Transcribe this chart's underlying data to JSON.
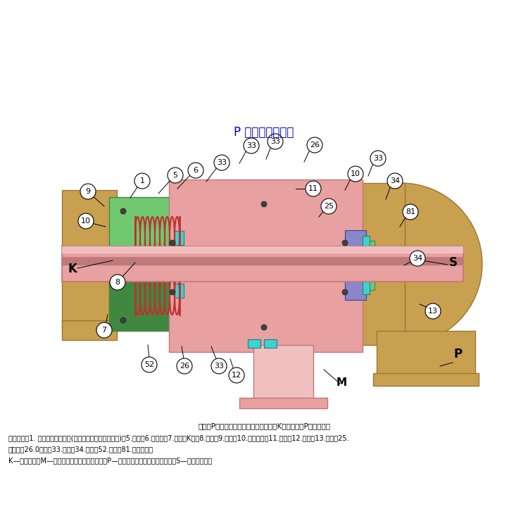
{
  "title": "P 型旋转接头简介",
  "subtitle": "图示为P型、双通路、内管固定式、外管K法兰连接、P型旋转接头",
  "parts_line1": "零件名称：1. 碳石墨球面密封环(简称球面环，或者密封环)，5.弹簧，6.弹簧套，7.外管（K），8.内管，9.底盖，10.密封垫圈，11.壳体，12.中盖，13.端盖，25.",
  "parts_line2": "定位销，26.0型圈，33.螺栓，34.螺母，52.衬套，81.锁紧垫圈。",
  "parts_line3": "K—外管代号，M—蒸汽管路接口（入口）代号，P—冷凝水管路接口（出口）代号，S—虹吸管代号。",
  "bg_color": "#ffffff",
  "text_color": "#000000",
  "title_fontsize": 12,
  "body_fontsize": 7.5,
  "label_fontsize": 8,
  "colors": {
    "gold": "#C8A050",
    "gold_dark": "#9A7830",
    "pink": "#E8A0A0",
    "pink_light": "#F0C0C0",
    "pink_dark": "#C07878",
    "green": "#70C870",
    "green_dark": "#408840",
    "teal": "#40D0D0",
    "red_spring": "#C03030",
    "blue_purple": "#8888C8",
    "yellow": "#E8E040",
    "gray": "#909090",
    "white": "#FFFFFF",
    "black": "#000000"
  }
}
